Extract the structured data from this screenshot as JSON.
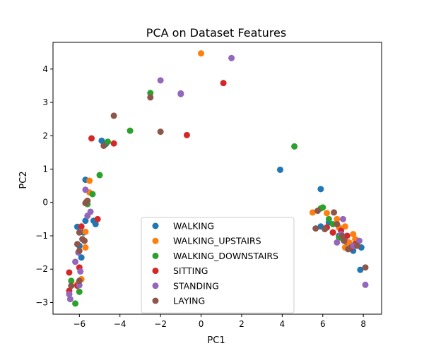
{
  "chart_data": {
    "type": "scatter",
    "title": "PCA on Dataset Features",
    "xlabel": "PC1",
    "ylabel": "PC2",
    "xlim": [
      -7.3,
      8.9
    ],
    "ylim": [
      -3.35,
      4.8
    ],
    "x_ticks": [
      -6,
      -4,
      -2,
      0,
      2,
      4,
      6,
      8
    ],
    "x_tick_labels": [
      "−6",
      "−4",
      "−2",
      "0",
      "2",
      "4",
      "6",
      "8"
    ],
    "y_ticks": [
      -3,
      -2,
      -1,
      0,
      1,
      2,
      3,
      4
    ],
    "y_tick_labels": [
      "−3",
      "−2",
      "−1",
      "0",
      "1",
      "2",
      "3",
      "4"
    ],
    "grid": false,
    "legend": "lower-center",
    "series": [
      {
        "name": "WALKING",
        "color": "#1f77b4",
        "points": [
          [
            -5.7,
            0.68
          ],
          [
            -6.1,
            -0.73
          ],
          [
            -5.8,
            -0.9
          ],
          [
            -5.7,
            -0.55
          ],
          [
            -5.3,
            -0.55
          ],
          [
            -5.2,
            -0.65
          ],
          [
            -6.0,
            -1.3
          ],
          [
            -5.9,
            -1.65
          ],
          [
            -4.9,
            1.85
          ],
          [
            -4.7,
            1.75
          ],
          [
            3.9,
            0.98
          ],
          [
            5.9,
            0.4
          ],
          [
            5.9,
            -0.72
          ],
          [
            6.3,
            -0.6
          ],
          [
            6.5,
            -0.9
          ],
          [
            6.8,
            -1.0
          ],
          [
            7.2,
            -1.2
          ],
          [
            7.5,
            -1.45
          ],
          [
            7.9,
            -1.35
          ],
          [
            7.85,
            -2.02
          ]
        ]
      },
      {
        "name": "WALKING_UPSTAIRS",
        "color": "#ff7f0e",
        "points": [
          [
            0.0,
            4.47
          ],
          [
            -5.5,
            0.65
          ],
          [
            -5.5,
            0.3
          ],
          [
            -5.7,
            -0.88
          ],
          [
            -5.7,
            -1.35
          ],
          [
            -5.9,
            -2.3
          ],
          [
            -6.1,
            -2.45
          ],
          [
            5.5,
            -0.3
          ],
          [
            6.2,
            -0.32
          ],
          [
            6.7,
            -0.5
          ],
          [
            7.1,
            -0.72
          ],
          [
            7.5,
            -0.95
          ],
          [
            7.1,
            -1.35
          ],
          [
            7.3,
            -1.2
          ],
          [
            7.6,
            -1.1
          ],
          [
            6.8,
            -0.75
          ]
        ]
      },
      {
        "name": "WALKING_DOWNSTAIRS",
        "color": "#2ca02c",
        "points": [
          [
            -2.5,
            3.28
          ],
          [
            -3.5,
            2.15
          ],
          [
            -4.6,
            1.82
          ],
          [
            -5.0,
            0.82
          ],
          [
            -5.35,
            0.25
          ],
          [
            -5.6,
            -0.05
          ],
          [
            -5.65,
            0.02
          ],
          [
            -6.0,
            -2.68
          ],
          [
            -6.2,
            -3.03
          ],
          [
            -6.4,
            -2.35
          ],
          [
            4.6,
            1.68
          ],
          [
            5.9,
            -0.18
          ],
          [
            6.3,
            -0.5
          ],
          [
            6.5,
            -0.65
          ],
          [
            6.8,
            -1.05
          ],
          [
            7.0,
            -1.1
          ],
          [
            6.0,
            -0.15
          ]
        ]
      },
      {
        "name": "SITTING",
        "color": "#d62728",
        "points": [
          [
            1.1,
            3.58
          ],
          [
            -0.7,
            2.02
          ],
          [
            -5.4,
            1.92
          ],
          [
            -4.3,
            1.77
          ],
          [
            -5.1,
            -0.5
          ],
          [
            -5.9,
            -0.72
          ],
          [
            -6.0,
            -1.95
          ],
          [
            -6.5,
            -2.1
          ],
          [
            -6.5,
            -2.65
          ],
          [
            -6.1,
            -2.5
          ],
          [
            6.5,
            -0.9
          ],
          [
            6.9,
            -0.85
          ],
          [
            7.2,
            -1.0
          ],
          [
            7.4,
            -1.35
          ],
          [
            7.6,
            -1.25
          ],
          [
            6.2,
            -0.75
          ]
        ]
      },
      {
        "name": "STANDING",
        "color": "#9467bd",
        "points": [
          [
            1.5,
            4.33
          ],
          [
            -2.0,
            3.66
          ],
          [
            -1.0,
            3.27
          ],
          [
            -1.0,
            3.25
          ],
          [
            -5.7,
            0.38
          ],
          [
            -5.6,
            -0.4
          ],
          [
            -5.45,
            -0.28
          ],
          [
            -6.05,
            -1.5
          ],
          [
            -6.2,
            -1.78
          ],
          [
            -5.95,
            -2.07
          ],
          [
            -6.5,
            -2.75
          ],
          [
            -6.45,
            -2.9
          ],
          [
            -6.0,
            -2.48
          ],
          [
            7.0,
            -0.5
          ],
          [
            6.7,
            -1.2
          ],
          [
            7.5,
            -1.3
          ],
          [
            7.8,
            -1.15
          ],
          [
            8.1,
            -2.47
          ],
          [
            6.9,
            -0.95
          ]
        ]
      },
      {
        "name": "LAYING",
        "color": "#8c564b",
        "points": [
          [
            -4.3,
            2.6
          ],
          [
            -2.5,
            3.15
          ],
          [
            -2.0,
            2.12
          ],
          [
            -4.8,
            1.7
          ],
          [
            -5.6,
            0.05
          ],
          [
            -5.7,
            -0.02
          ],
          [
            -6.0,
            -0.9
          ],
          [
            -5.85,
            -1.1
          ],
          [
            -5.75,
            -1.15
          ],
          [
            -6.1,
            -1.25
          ],
          [
            -6.0,
            -1.45
          ],
          [
            -6.4,
            -2.5
          ],
          [
            -6.0,
            -2.35
          ],
          [
            5.65,
            -0.78
          ],
          [
            5.75,
            -0.25
          ],
          [
            6.1,
            -0.8
          ],
          [
            6.55,
            -0.3
          ],
          [
            6.7,
            -0.65
          ],
          [
            7.05,
            -1.15
          ],
          [
            7.25,
            -1.4
          ],
          [
            7.7,
            -1.3
          ],
          [
            8.1,
            -1.95
          ],
          [
            6.95,
            -1.0
          ]
        ]
      }
    ]
  }
}
